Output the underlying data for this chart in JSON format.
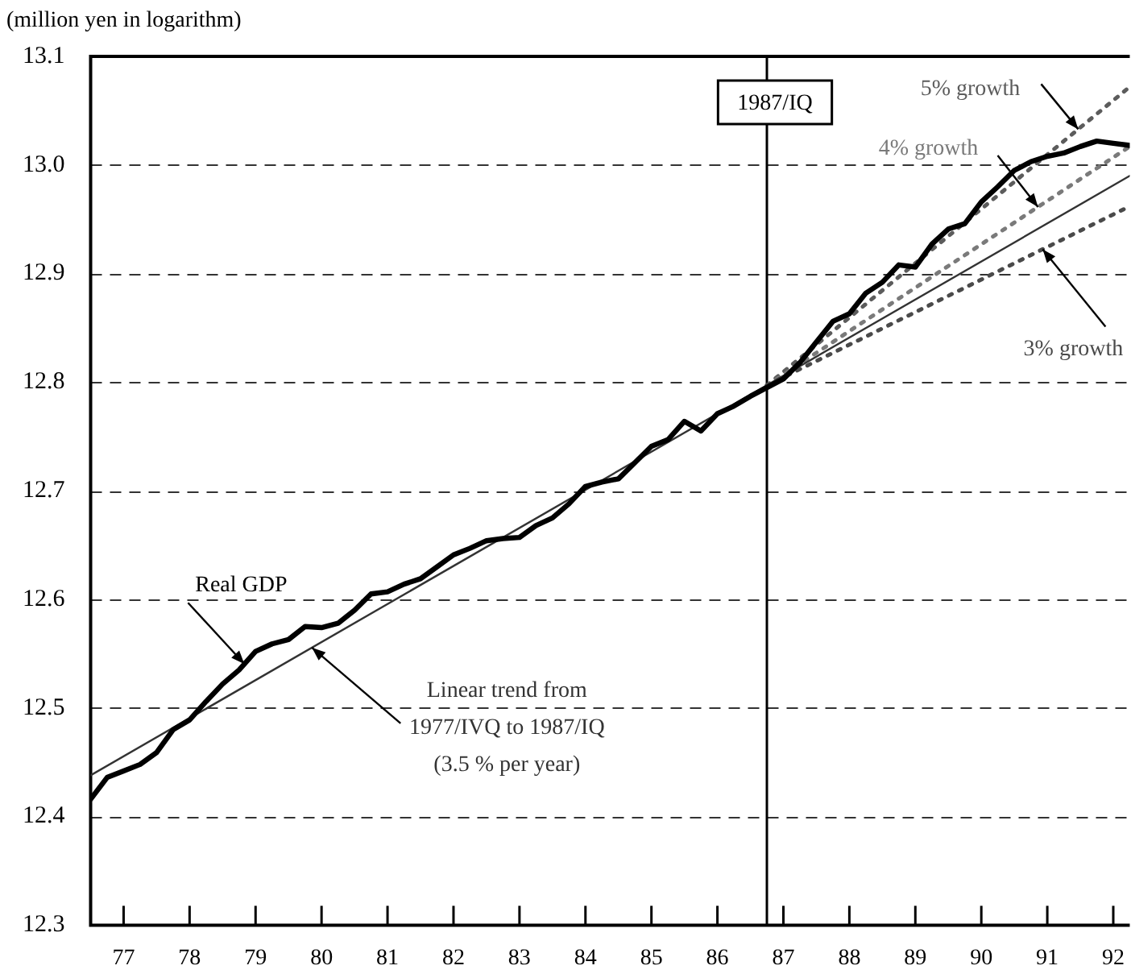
{
  "chart_data": {
    "type": "line",
    "ylabel": "(million yen in logarithm)",
    "xlim": [
      76.5,
      92.25
    ],
    "xticks": [
      77,
      78,
      79,
      80,
      81,
      82,
      83,
      84,
      85,
      86,
      87,
      88,
      89,
      90,
      91,
      92
    ],
    "ylim": [
      12.3,
      13.1
    ],
    "yticks": [
      12.3,
      12.4,
      12.5,
      12.6,
      12.7,
      12.8,
      12.9,
      {
        "value": 13,
        "label": "13.0"
      },
      13.1
    ],
    "grid": "y",
    "legend": false,
    "marker": "none",
    "series": [
      {
        "name": "Real GDP",
        "color": "#000000",
        "x": [
          76.5,
          76.75,
          77,
          77.25,
          77.5,
          77.75,
          78,
          78.25,
          78.5,
          78.75,
          79,
          79.25,
          79.5,
          79.75,
          80,
          80.25,
          80.5,
          80.75,
          81,
          81.25,
          81.5,
          81.75,
          82,
          82.25,
          82.5,
          82.75,
          83,
          83.25,
          83.5,
          83.75,
          84,
          84.25,
          84.5,
          84.75,
          85,
          85.25,
          85.5,
          85.75,
          86,
          86.25,
          86.5,
          86.75,
          87,
          87.25,
          87.5,
          87.75,
          88,
          88.25,
          88.5,
          88.75,
          89,
          89.25,
          89.5,
          89.75,
          90,
          90.25,
          90.5,
          90.75,
          91,
          91.25,
          91.5,
          91.75,
          92,
          92.25
        ],
        "values": [
          12.416,
          12.436,
          12.442,
          12.448,
          12.459,
          12.48,
          12.489,
          12.506,
          12.522,
          12.535,
          12.552,
          12.559,
          12.563,
          12.575,
          12.574,
          12.578,
          12.59,
          12.605,
          12.607,
          12.614,
          12.619,
          12.63,
          12.641,
          12.647,
          12.654,
          12.656,
          12.657,
          12.668,
          12.675,
          12.688,
          12.704,
          12.708,
          12.711,
          12.726,
          12.741,
          12.747,
          12.764,
          12.755,
          12.771,
          12.778,
          12.787,
          12.795,
          12.803,
          12.818,
          12.837,
          12.856,
          12.863,
          12.882,
          12.892,
          12.908,
          12.906,
          12.927,
          12.941,
          12.946,
          12.966,
          12.98,
          12.995,
          13.003,
          13.008,
          13.011,
          13.017,
          13.022,
          13.02,
          13.018
        ]
      },
      {
        "name": "Linear trend from 1977/IVQ to 1987/IQ (3.5 % per year)",
        "color": "#333333",
        "x": [
          76.5,
          92.25
        ],
        "values": [
          12.438,
          12.99
        ]
      },
      {
        "name": "3% growth",
        "color": "#4a4a4a",
        "line_style": "dotted",
        "x": [
          86.75,
          92.25
        ],
        "values": [
          12.797,
          12.962
        ]
      },
      {
        "name": "4% growth",
        "color": "#7a7a7a",
        "line_style": "dotted",
        "x": [
          86.75,
          92.25
        ],
        "values": [
          12.797,
          13.017
        ]
      },
      {
        "name": "5% growth",
        "color": "#5c5c5c",
        "line_style": "dotted",
        "x": [
          86.75,
          92.25
        ],
        "values": [
          12.797,
          13.072
        ]
      }
    ],
    "ref_lines": [
      {
        "axis": "x",
        "value": 86.75,
        "label": "1987/IQ"
      }
    ]
  }
}
